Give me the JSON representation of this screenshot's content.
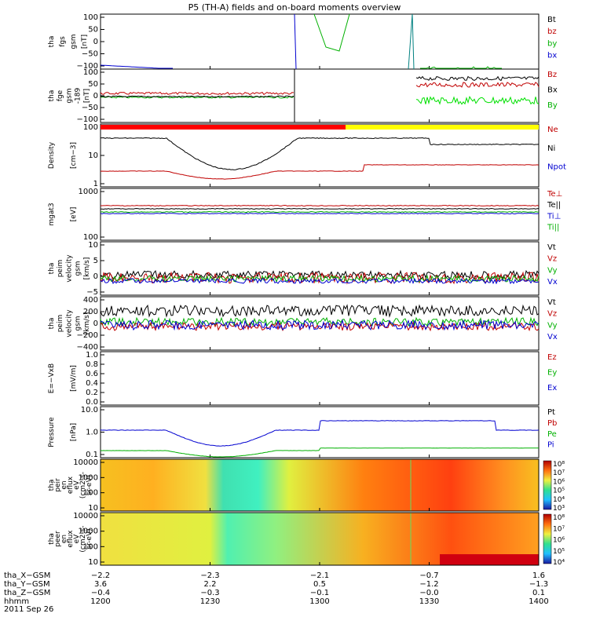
{
  "chart_data": {
    "type": "line",
    "title": "P5 (TH-A) fields and on-board moments overview",
    "time_ticks": [
      "1200",
      "1230",
      "1300",
      "1330",
      "1400"
    ],
    "panels": [
      {
        "id": "fgs",
        "ylabel": [
          "tha",
          "fgs",
          "gsm",
          "[nT]"
        ],
        "ylim": [
          -100,
          100
        ],
        "yticks": [
          "100",
          "50",
          "0",
          "−50",
          "−100"
        ],
        "legend": [
          {
            "label": "Bt",
            "color": "#000000"
          },
          {
            "label": "bz",
            "color": "#c00000"
          },
          {
            "label": "by",
            "color": "#00b000"
          },
          {
            "label": "bx",
            "color": "#0000d0"
          }
        ]
      },
      {
        "id": "fge",
        "ylabel": [
          "tha",
          "fge",
          "gsm",
          "-189",
          "[nT]"
        ],
        "ylim": [
          -125,
          125
        ],
        "yticks": [
          "100",
          "50",
          "0",
          "−50",
          "−100"
        ],
        "legend": [
          {
            "label": "Bz",
            "color": "#c00000"
          },
          {
            "label": "Bx",
            "color": "#000000"
          },
          {
            "label": "By",
            "color": "#00b000"
          }
        ]
      },
      {
        "id": "density",
        "ylabel": [
          "Density",
          "[cm−3]"
        ],
        "log": true,
        "yticks": [
          "100",
          "10",
          "1"
        ],
        "legend": [
          {
            "label": "Ne",
            "color": "#c00000"
          },
          {
            "label": "Ni",
            "color": "#000000"
          },
          {
            "label": "Npot",
            "color": "#0000d0"
          }
        ]
      },
      {
        "id": "temp",
        "ylabel": [
          "mgat3",
          "[eV]"
        ],
        "log": true,
        "yticks": [
          "1000",
          "100"
        ],
        "legend": [
          {
            "label": "Te⊥",
            "color": "#c00000"
          },
          {
            "label": "Te||",
            "color": "#000000"
          },
          {
            "label": "Ti⊥",
            "color": "#0000d0"
          },
          {
            "label": "Ti||",
            "color": "#00b000"
          }
        ]
      },
      {
        "id": "peem_v",
        "ylabel": [
          "tha",
          "peim",
          "velocity",
          "gsm",
          "[km/s]"
        ],
        "ylim": [
          -10,
          10
        ],
        "yticks": [
          "10",
          "5",
          "0",
          "−5"
        ],
        "legend": [
          {
            "label": "Vt",
            "color": "#000000"
          },
          {
            "label": "Vz",
            "color": "#c00000"
          },
          {
            "label": "Vy",
            "color": "#00b000"
          },
          {
            "label": "Vx",
            "color": "#0000d0"
          }
        ]
      },
      {
        "id": "peim_v",
        "ylabel": [
          "tha",
          "peim",
          "velocity",
          "gsm",
          "[km/s]"
        ],
        "ylim": [
          -400,
          400
        ],
        "yticks": [
          "400",
          "200",
          "0",
          "−200",
          "−400"
        ],
        "legend": [
          {
            "label": "Vt",
            "color": "#000000"
          },
          {
            "label": "Vz",
            "color": "#c00000"
          },
          {
            "label": "Vy",
            "color": "#00b000"
          },
          {
            "label": "Vx",
            "color": "#0000d0"
          }
        ]
      },
      {
        "id": "efield",
        "ylabel": [
          "E=−VxB",
          "[mV/m]"
        ],
        "ylim": [
          0,
          1
        ],
        "yticks": [
          "1.0",
          "0.8",
          "0.6",
          "0.4",
          "0.2",
          "0.0"
        ],
        "legend": [
          {
            "label": "Ez",
            "color": "#c00000"
          },
          {
            "label": "Ey",
            "color": "#00b000"
          },
          {
            "label": "Ex",
            "color": "#0000d0"
          }
        ]
      },
      {
        "id": "pressure",
        "ylabel": [
          "Pressure",
          "[nPa]"
        ],
        "log": true,
        "yticks": [
          "10.0",
          "1.0",
          "0.1"
        ],
        "legend": [
          {
            "label": "Pt",
            "color": "#000000"
          },
          {
            "label": "Pb",
            "color": "#c00000"
          },
          {
            "label": "Pe",
            "color": "#00b000"
          },
          {
            "label": "Pi",
            "color": "#0000d0"
          }
        ]
      },
      {
        "id": "peir",
        "ylabel": [
          "tha",
          "peir",
          "en",
          "eflux",
          "eV",
          "(cm2-s-",
          "sr-eV)"
        ],
        "log": true,
        "yticks": [
          "10000",
          "1000",
          "100",
          "10"
        ],
        "cbar": [
          "10⁸",
          "10⁷",
          "10⁶",
          "10⁵",
          "10⁴",
          "10³"
        ]
      },
      {
        "id": "peer",
        "ylabel": [
          "tha",
          "peer",
          "en",
          "eflux",
          "eV",
          "(cm2-s-",
          "sr-eV)"
        ],
        "log": true,
        "yticks": [
          "10000",
          "1000",
          "100",
          "10"
        ],
        "cbar": [
          "10⁸",
          "10⁷",
          "10⁶",
          "10⁵",
          "10⁴"
        ]
      }
    ],
    "footer": {
      "rows": [
        {
          "label": "tha_X−GSM",
          "values": [
            "−2.2",
            "−2.3",
            "−2.1",
            "−0.7",
            "1.6"
          ]
        },
        {
          "label": "tha_Y−GSM",
          "values": [
            "3.6",
            "2.2",
            "0.5",
            "−1.2",
            "−1.3"
          ]
        },
        {
          "label": "tha_Z−GSM",
          "values": [
            "−0.4",
            "−0.3",
            "−0.1",
            "−0.0",
            "0.1"
          ]
        },
        {
          "label": "hhmm",
          "values": [
            "1200",
            "1230",
            "1300",
            "1330",
            "1400"
          ]
        }
      ],
      "date": "2011 Sep 26"
    }
  }
}
